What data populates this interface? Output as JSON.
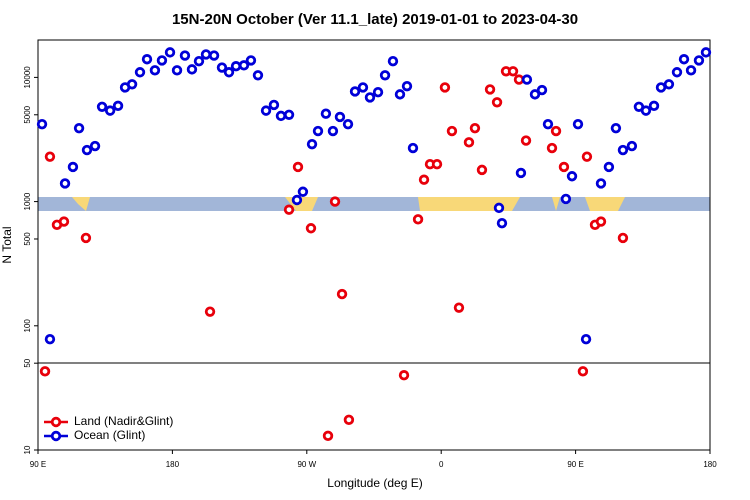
{
  "chart_data": {
    "type": "scatter",
    "title": "15N-20N October (Ver 11.1_late)   2019-01-01 to 2023-04-30",
    "xlabel": "Longitude (deg E)",
    "ylabel": "N Total",
    "xlim": [
      90,
      540
    ],
    "xticks": [
      {
        "value": 90,
        "label": "90 E"
      },
      180,
      {
        "value": 270,
        "label": "90 W"
      },
      {
        "value": 360,
        "label": "0"
      },
      {
        "value": 450,
        "label": "90 E"
      },
      {
        "value": 540,
        "label": "180"
      }
    ],
    "ylim": [
      10,
      20000
    ],
    "yticks": [
      10,
      50,
      100,
      500,
      1000,
      5000,
      10000
    ],
    "log_y": true,
    "legend": "bottom-left",
    "series": [
      {
        "name": "Land (Nadir&Glint)",
        "color": "#e8000b",
        "x": [
          94.7,
          98,
          102.7,
          107.4,
          122.1,
          205.2,
          258.1,
          264.1,
          272.8,
          288.9,
          293.6,
          284.2,
          298.2,
          335.1,
          344.5,
          348.5,
          352.5,
          357.2,
          362.5,
          367.2,
          371.9,
          378.6,
          382.6,
          387.3,
          392.7,
          397.4,
          403.4,
          408.1,
          412.1,
          416.8,
          434.2,
          436.9,
          442.2,
          454.9,
          457.6,
          463,
          467,
          481.7
        ],
        "values": [
          43,
          2300,
          650,
          690,
          510,
          130,
          860,
          1900,
          610,
          1000,
          180,
          13,
          17.5,
          40,
          720,
          1500,
          2000,
          2000,
          8300,
          3700,
          140,
          3000,
          3900,
          1800,
          8000,
          6300,
          11200,
          11200,
          9600,
          3100,
          2700,
          3700,
          1900,
          43,
          2300,
          650,
          690,
          510
        ]
      },
      {
        "name": "Ocean (Glint)",
        "color": "#0000d8",
        "x": [
          92.7,
          98,
          108.1,
          113.4,
          117.5,
          122.8,
          128.2,
          132.9,
          138.3,
          143.6,
          148.3,
          153,
          158.3,
          163,
          168.3,
          173,
          178.4,
          183.1,
          188.4,
          193.1,
          197.8,
          202.5,
          207.9,
          213.2,
          217.9,
          222.6,
          227.9,
          232.6,
          237.3,
          242.7,
          248,
          252.7,
          258.1,
          263.4,
          267.4,
          273.5,
          277.5,
          282.8,
          287.5,
          292.2,
          297.6,
          302.3,
          307.6,
          312.3,
          317.7,
          322.4,
          327.7,
          332.4,
          337.1,
          341.1,
          398.7,
          400.7,
          413.4,
          417.4,
          422.8,
          427.5,
          431.5,
          443.5,
          447.6,
          451.6,
          457,
          467,
          472.3,
          477,
          481.7,
          487.7,
          492.4,
          497.1,
          502.5,
          507.2,
          512.5,
          517.9,
          522.6,
          527.3,
          532.6,
          537.3
        ],
        "values": [
          4200,
          78,
          1400,
          1900,
          3900,
          2600,
          2800,
          5800,
          5400,
          5900,
          8300,
          8800,
          11000,
          14000,
          11400,
          13700,
          15900,
          11400,
          15000,
          11600,
          13500,
          15300,
          15000,
          12000,
          11000,
          12300,
          12500,
          13700,
          10400,
          5400,
          6000,
          4900,
          5000,
          1030,
          1200,
          2900,
          3700,
          5100,
          3700,
          4800,
          4200,
          7700,
          8300,
          6900,
          7600,
          10400,
          13500,
          7300,
          8500,
          2700,
          890,
          670,
          1700,
          9600,
          7300,
          7900,
          4200,
          1050,
          1600,
          4200,
          78,
          1400,
          1900,
          3900,
          2600,
          2800,
          5800,
          5400,
          5900,
          8300,
          8800,
          11000,
          14000,
          11400,
          13700,
          15900
        ]
      }
    ]
  }
}
